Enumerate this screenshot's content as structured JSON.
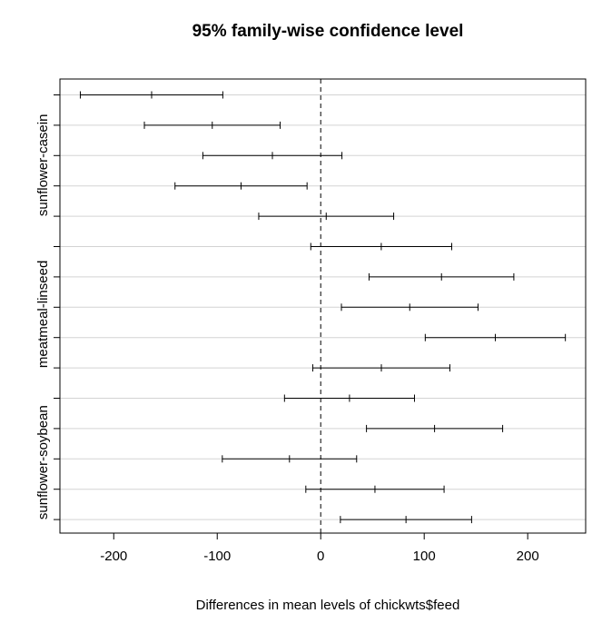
{
  "chart_data": {
    "type": "interval",
    "title": "95% family-wise confidence level",
    "xlabel": "Differences in mean levels of chickwts$feed",
    "ylabel": "",
    "xlim": [
      -252,
      256
    ],
    "x_ticks": [
      -200,
      -100,
      0,
      100,
      200
    ],
    "reference_line": 0,
    "grid": "horizontal",
    "rows_top_to_bottom": [
      {
        "lwr": -232.3,
        "est": -163.4,
        "upr": -94.6
      },
      {
        "lwr": -170.4,
        "est": -104.8,
        "upr": -39.2
      },
      {
        "lwr": -113.9,
        "est": -46.7,
        "upr": 20.5
      },
      {
        "lwr": -140.8,
        "est": -77.0,
        "upr": -13.2
      },
      {
        "lwr": -59.9,
        "est": 5.3,
        "upr": 70.5
      },
      {
        "lwr": -9.6,
        "est": 58.5,
        "upr": 126.6
      },
      {
        "lwr": 46.7,
        "est": 116.7,
        "upr": 186.6
      },
      {
        "lwr": 20.0,
        "est": 86.0,
        "upr": 152.0
      },
      {
        "lwr": 101.0,
        "est": 168.7,
        "upr": 236.4
      },
      {
        "lwr": -7.7,
        "est": 58.6,
        "upr": 124.8
      },
      {
        "lwr": -35.0,
        "est": 27.8,
        "upr": 90.6
      },
      {
        "lwr": 44.2,
        "est": 110.0,
        "upr": 175.8
      },
      {
        "lwr": -95.1,
        "est": -30.2,
        "upr": 34.7
      },
      {
        "lwr": -14.4,
        "est": 52.4,
        "upr": 119.2
      },
      {
        "lwr": 19.0,
        "est": 82.4,
        "upr": 145.8
      }
    ],
    "y_tick_labels": [
      {
        "row": 4,
        "label": "sunflower-casein"
      },
      {
        "row": 9,
        "label": "meatmeal-linseed"
      },
      {
        "row": 14,
        "label": "sunflower-soybean"
      }
    ]
  }
}
